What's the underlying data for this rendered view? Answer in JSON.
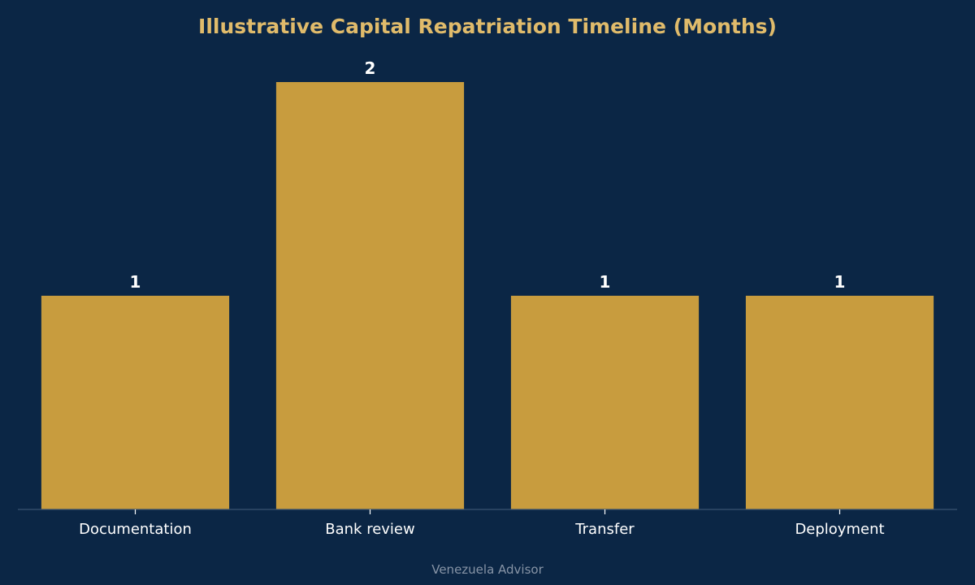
{
  "chart_data": {
    "type": "bar",
    "title": "Illustrative Capital Repatriation Timeline (Months)",
    "categories": [
      "Documentation",
      "Bank review",
      "Transfer",
      "Deployment"
    ],
    "values": [
      1,
      2,
      1,
      1
    ],
    "xlabel": "",
    "ylabel": "",
    "ylim": [
      0,
      2
    ],
    "grid": false,
    "legend": "none"
  },
  "footer": {
    "source": "Venezuela Advisor"
  },
  "colors": {
    "background": "#0b2645",
    "bar": "#c89c3e",
    "title": "#e0bb6b",
    "label": "#ffffff",
    "footer": "#8794a6",
    "axis": "#3b5470"
  }
}
